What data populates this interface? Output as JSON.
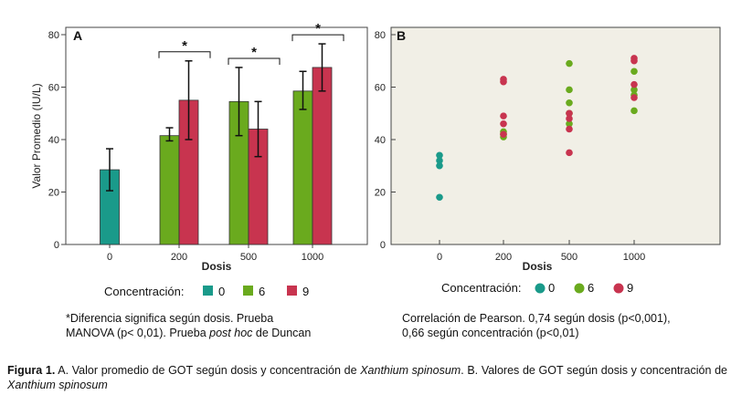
{
  "chart_data": [
    {
      "panel": "A",
      "type": "bar",
      "categories": [
        "0",
        "200",
        "500",
        "1000"
      ],
      "xlabel": "Dosis",
      "ylabel": "Valor Promedio (IU/L)",
      "ylim": [
        0,
        80
      ],
      "yticks": [
        0,
        20,
        40,
        60,
        80
      ],
      "series": [
        {
          "name": "0",
          "color": "#1a9a8a",
          "values": [
            28.5,
            null,
            null,
            null
          ],
          "err_low": [
            20.5,
            null,
            null,
            null
          ],
          "err_high": [
            36.5,
            null,
            null,
            null
          ]
        },
        {
          "name": "6",
          "color": "#6aaa1e",
          "values": [
            null,
            41.5,
            54.5,
            58.5
          ],
          "err_low": [
            null,
            39.5,
            41.5,
            51.5
          ],
          "err_high": [
            null,
            44.5,
            67.5,
            66.0
          ]
        },
        {
          "name": "9",
          "color": "#c8344f",
          "values": [
            null,
            55.0,
            44.0,
            67.5
          ],
          "err_low": [
            null,
            40.0,
            33.5,
            58.5
          ],
          "err_high": [
            null,
            70.0,
            54.5,
            76.5
          ]
        }
      ],
      "significance_marker": "*",
      "significance_groups": [
        "200",
        "500",
        "1000"
      ]
    },
    {
      "panel": "B",
      "type": "scatter",
      "categories": [
        "0",
        "200",
        "500",
        "1000"
      ],
      "xlabel": "Dosis",
      "ylim": [
        0,
        80
      ],
      "yticks": [
        0,
        20,
        40,
        60,
        80
      ],
      "series": [
        {
          "name": "0",
          "color": "#1a9a8a",
          "points": [
            [
              "0",
              18
            ],
            [
              "0",
              30
            ],
            [
              "0",
              32
            ],
            [
              "0",
              34
            ]
          ]
        },
        {
          "name": "6",
          "color": "#6aaa1e",
          "points": [
            [
              "200",
              41
            ],
            [
              "200",
              42
            ],
            [
              "200",
              43
            ],
            [
              "500",
              46
            ],
            [
              "500",
              50
            ],
            [
              "500",
              54
            ],
            [
              "500",
              59
            ],
            [
              "500",
              69
            ],
            [
              "1000",
              51
            ],
            [
              "1000",
              57
            ],
            [
              "1000",
              59
            ],
            [
              "1000",
              66
            ]
          ]
        },
        {
          "name": "9",
          "color": "#c8344f",
          "points": [
            [
              "200",
              42
            ],
            [
              "200",
              46
            ],
            [
              "200",
              49
            ],
            [
              "200",
              62
            ],
            [
              "200",
              63
            ],
            [
              "500",
              35
            ],
            [
              "500",
              44
            ],
            [
              "500",
              48
            ],
            [
              "500",
              50
            ],
            [
              "1000",
              56
            ],
            [
              "1000",
              61
            ],
            [
              "1000",
              70
            ],
            [
              "1000",
              71
            ]
          ]
        }
      ],
      "legend_position": "bottom"
    }
  ],
  "legend": {
    "title": "Concentración:",
    "items": [
      "0",
      "6",
      "9"
    ]
  },
  "notes": {
    "left_line1": "*Diferencia significa según dosis. Prueba",
    "left_line2_a": "MANOVA (p< 0,01). Prueba ",
    "left_line2_italic": "post hoc",
    "left_line2_b": " de Duncan",
    "right_line1": "Correlación de Pearson. 0,74 según dosis (p<0,001),",
    "right_line2": "0,66 según concentración (p<0,01)"
  },
  "caption": {
    "label": "Figura 1.",
    "text_a": " A. Valor promedio de GOT según dosis y concentración de ",
    "species": "Xanthium spinosum",
    "text_b": ". B. Valores de GOT según dosis y concentración de "
  }
}
